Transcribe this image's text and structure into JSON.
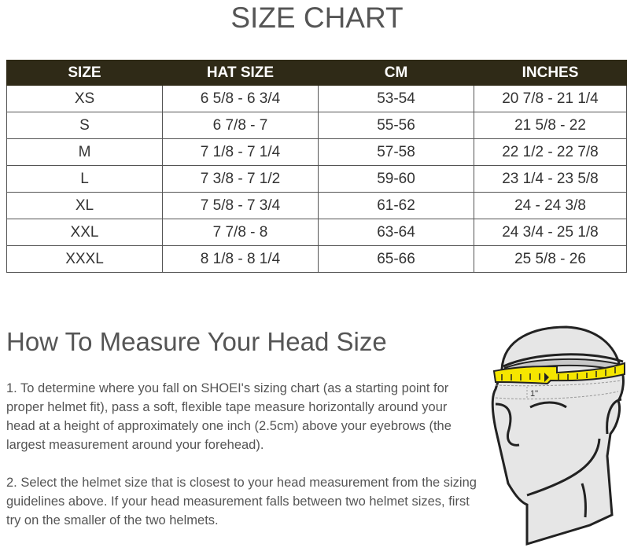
{
  "title": "SIZE CHART",
  "table": {
    "headers": [
      "SIZE",
      "HAT SIZE",
      "CM",
      "INCHES"
    ],
    "rows": [
      [
        "XS",
        "6 5/8 - 6 3/4",
        "53-54",
        "20 7/8 - 21 1/4"
      ],
      [
        "S",
        "6 7/8 - 7",
        "55-56",
        "21 5/8 - 22"
      ],
      [
        "M",
        "7 1/8 - 7 1/4",
        "57-58",
        "22 1/2 - 22 7/8"
      ],
      [
        "L",
        "7 3/8 - 7 1/2",
        "59-60",
        "23 1/4 - 23 5/8"
      ],
      [
        "XL",
        "7 5/8 - 7 3/4",
        "61-62",
        "24 - 24 3/8"
      ],
      [
        "XXL",
        "7 7/8 - 8",
        "63-64",
        "24 3/4 - 25 1/8"
      ],
      [
        "XXXL",
        "8 1/8 - 8 1/4",
        "65-66",
        "25 5/8 - 26"
      ]
    ]
  },
  "measure": {
    "heading": "How To Measure Your Head Size",
    "step1": "1. To determine where you fall on SHOEI's sizing chart (as a starting point for proper helmet fit), pass a soft, flexible tape measure horizontally around your head at a height of approximately one inch (2.5cm) above your eyebrows (the largest measurement around your forehead).",
    "step2": "2. Select the helmet size that is closest to your head measurement from the sizing guidelines above. If your head measurement falls between two helmet sizes, first try on the smaller of the two helmets.",
    "illustration_label": "1\"",
    "tape_color": "#f5e600"
  }
}
